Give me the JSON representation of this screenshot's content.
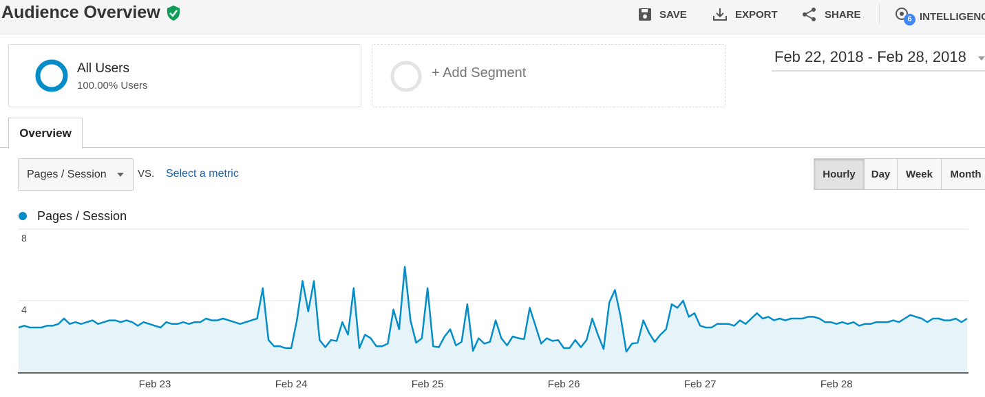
{
  "header": {
    "title": "Audience Overview",
    "actions": [
      "SAVE",
      "EXPORT",
      "SHARE",
      "INTELLIGENCE"
    ],
    "badge": "6"
  },
  "segments": {
    "name": "All Users",
    "detail": "100.00% Users",
    "add": "+ Add Segment"
  },
  "date_range": "Feb 22, 2018 - Feb 28, 2018",
  "tabs": [
    "Overview"
  ],
  "controls": {
    "metric": "Pages / Session",
    "vs": "VS.",
    "select": "Select a metric",
    "granularity": [
      "Hourly",
      "Day",
      "Week",
      "Month"
    ]
  },
  "chart_data": {
    "type": "line",
    "categories": [
      null,
      null,
      null,
      null,
      null,
      null,
      null,
      null,
      null,
      null,
      null,
      null,
      null,
      null,
      null,
      null,
      null,
      null,
      null,
      null,
      null,
      null,
      null,
      null,
      "Feb 23",
      null,
      null,
      null,
      null,
      null,
      null,
      null,
      null,
      null,
      null,
      null,
      null,
      null,
      null,
      null,
      null,
      null,
      null,
      null,
      null,
      null,
      null,
      null,
      "Feb 24",
      null,
      null,
      null,
      null,
      null,
      null,
      null,
      null,
      null,
      null,
      null,
      null,
      null,
      null,
      null,
      null,
      null,
      null,
      null,
      null,
      null,
      null,
      null,
      "Feb 25",
      null,
      null,
      null,
      null,
      null,
      null,
      null,
      null,
      null,
      null,
      null,
      null,
      null,
      null,
      null,
      null,
      null,
      null,
      null,
      null,
      null,
      null,
      null,
      "Feb 26",
      null,
      null,
      null,
      null,
      null,
      null,
      null,
      null,
      null,
      null,
      null,
      null,
      null,
      null,
      null,
      null,
      null,
      null,
      null,
      null,
      null,
      null,
      null,
      "Feb 27",
      null,
      null,
      null,
      null,
      null,
      null,
      null,
      null,
      null,
      null,
      null,
      null,
      null,
      null,
      null,
      null,
      null,
      null,
      null,
      null,
      null,
      null,
      null,
      "Feb 28",
      null,
      null,
      null,
      null,
      null,
      null,
      null,
      null,
      null,
      null,
      null,
      null,
      null,
      null,
      null,
      null,
      null,
      null,
      null,
      null,
      null,
      null,
      null
    ],
    "series": [
      {
        "name": "Pages / Session",
        "color": "#058dc7",
        "values": [
          2.5,
          2.6,
          2.5,
          2.5,
          2.5,
          2.6,
          2.6,
          2.7,
          3.0,
          2.7,
          2.8,
          2.7,
          2.8,
          2.9,
          2.7,
          2.8,
          2.9,
          2.9,
          2.8,
          2.9,
          2.8,
          2.6,
          2.8,
          2.7,
          2.6,
          2.5,
          2.8,
          2.7,
          2.7,
          2.8,
          2.7,
          2.8,
          2.8,
          3.0,
          2.9,
          2.9,
          3.0,
          2.9,
          2.8,
          2.7,
          2.8,
          2.9,
          3.0,
          4.7,
          1.8,
          1.45,
          1.45,
          1.35,
          1.35,
          2.9,
          5.1,
          3.4,
          5.1,
          1.8,
          1.4,
          1.8,
          1.75,
          2.8,
          2.1,
          4.7,
          1.35,
          2.1,
          1.9,
          1.45,
          1.45,
          1.6,
          3.5,
          2.4,
          5.9,
          2.9,
          1.65,
          1.9,
          4.7,
          1.45,
          1.4,
          2.0,
          2.4,
          1.5,
          1.7,
          3.8,
          1.2,
          1.9,
          1.6,
          1.7,
          2.9,
          1.9,
          1.5,
          2.0,
          1.9,
          1.85,
          3.6,
          2.6,
          1.6,
          1.9,
          1.75,
          1.8,
          1.35,
          1.35,
          1.8,
          1.4,
          1.8,
          3.0,
          2.1,
          1.3,
          3.9,
          4.6,
          3.1,
          1.15,
          1.6,
          1.65,
          2.9,
          2.2,
          1.7,
          2.1,
          2.4,
          3.8,
          3.6,
          4.0,
          3.1,
          3.3,
          2.6,
          2.5,
          2.5,
          2.7,
          2.7,
          2.7,
          2.6,
          2.9,
          2.7,
          3.0,
          3.3,
          3.0,
          3.1,
          2.9,
          3.0,
          2.9,
          3.0,
          3.0,
          3.0,
          3.1,
          3.1,
          3.0,
          2.8,
          2.8,
          2.7,
          2.8,
          2.7,
          2.8,
          2.6,
          2.7,
          2.7,
          2.8,
          2.8,
          2.8,
          2.9,
          2.8,
          3.0,
          3.2,
          3.1,
          3.0,
          2.8,
          3.0,
          3.0,
          2.9,
          2.9,
          3.0,
          2.8,
          3.0
        ]
      }
    ],
    "ylim": [
      0,
      8
    ],
    "yticks": [
      4,
      8
    ],
    "grid": true
  }
}
